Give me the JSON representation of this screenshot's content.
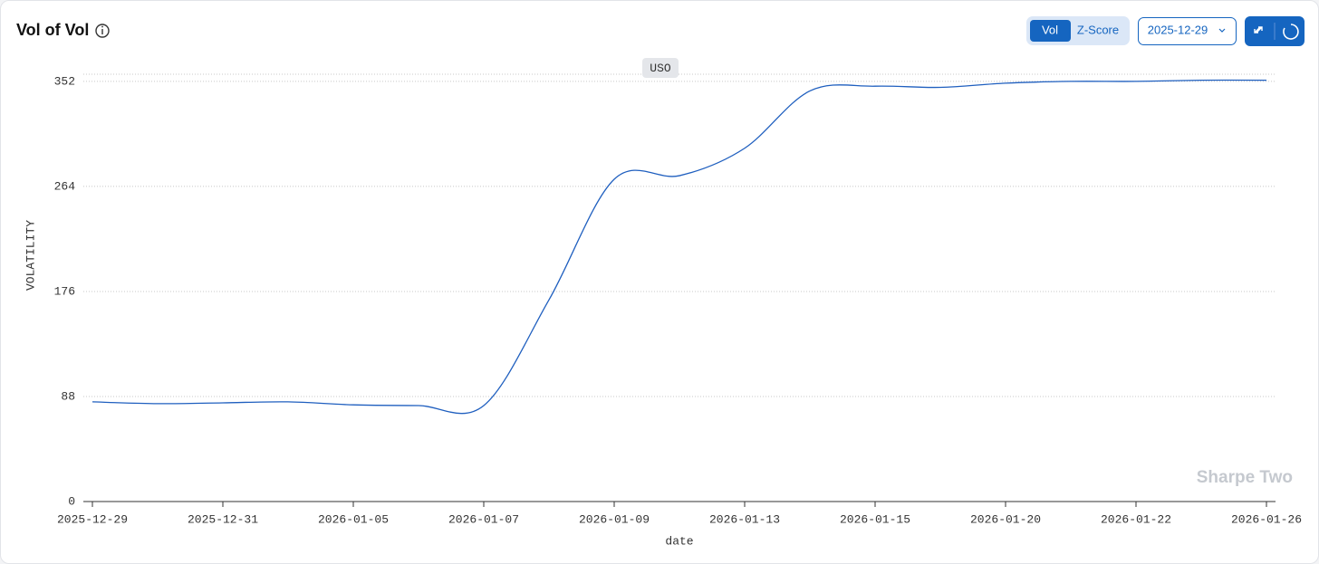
{
  "ui": {
    "title": "Vol of Vol",
    "toggle": [
      "Vol",
      "Z-Score"
    ],
    "date_picker": "2025-12-29",
    "watermark": "Sharpe Two"
  },
  "chart_data": {
    "type": "line",
    "x_label": "date",
    "y_label": "VOLATILITY",
    "categories": [
      "2025-12-29",
      null,
      "2025-12-31",
      null,
      "2026-01-05",
      null,
      "2026-01-07",
      null,
      "2026-01-09",
      null,
      "2026-01-13",
      null,
      "2026-01-15",
      null,
      "2026-01-20",
      null,
      "2026-01-22",
      null,
      "2026-01-26"
    ],
    "series": [
      {
        "name": "USO",
        "color": "#1f5fbf",
        "values": [
          83.5,
          82,
          82.7,
          83.5,
          81,
          80.4,
          80.4,
          169,
          270,
          273,
          296,
          344,
          348,
          347,
          350.5,
          352,
          352,
          353,
          353
        ]
      }
    ],
    "ylim": [
      0,
      358
    ],
    "yticks": [
      0,
      88,
      176,
      264,
      352
    ],
    "grid": true
  }
}
